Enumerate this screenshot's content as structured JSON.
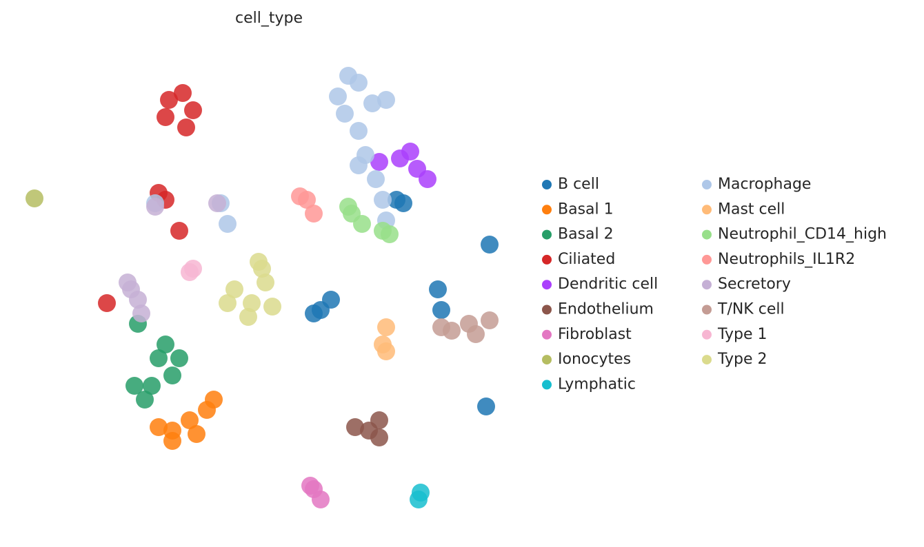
{
  "chart_data": {
    "type": "scatter",
    "title": "cell_type",
    "xlim": [
      0,
      700
    ],
    "ylim": [
      0,
      680
    ],
    "series": [
      {
        "name": "B cell",
        "color": "#1f77b4",
        "x": [
          425,
          440,
          415,
          545,
          535,
          670,
          595,
          600,
          665
        ],
        "y": [
          295,
          310,
          290,
          450,
          455,
          390,
          325,
          295,
          155
        ]
      },
      {
        "name": "Basal 1",
        "color": "#ff7f0e",
        "x": [
          210,
          235,
          260,
          270,
          210,
          190,
          245
        ],
        "y": [
          120,
          135,
          150,
          165,
          105,
          125,
          115
        ]
      },
      {
        "name": "Basal 2",
        "color": "#279e68",
        "x": [
          190,
          210,
          180,
          155,
          170,
          220,
          200,
          160
        ],
        "y": [
          225,
          200,
          185,
          185,
          165,
          225,
          245,
          275
        ]
      },
      {
        "name": "Ciliated",
        "color": "#d62728",
        "x": [
          205,
          225,
          240,
          200,
          230,
          190,
          200,
          220,
          115
        ],
        "y": [
          600,
          610,
          585,
          575,
          560,
          465,
          455,
          410,
          305
        ]
      },
      {
        "name": "Dendritic cell",
        "color": "#aa40fc",
        "x": [
          555,
          565,
          540,
          580,
          510
        ],
        "y": [
          525,
          500,
          515,
          485,
          510
        ]
      },
      {
        "name": "Endothelium",
        "color": "#8c564b",
        "x": [
          475,
          495,
          510,
          510
        ],
        "y": [
          125,
          120,
          135,
          110
        ]
      },
      {
        "name": "Fibroblast",
        "color": "#e377c2",
        "x": [
          415,
          425,
          410
        ],
        "y": [
          35,
          20,
          40
        ]
      },
      {
        "name": "Ionocytes",
        "color": "#b5bd61",
        "x": [
          10
        ],
        "y": [
          457
        ]
      },
      {
        "name": "Lymphatic",
        "color": "#17becf",
        "x": [
          570,
          567
        ],
        "y": [
          30,
          20
        ]
      },
      {
        "name": "Macrophage",
        "color": "#aec7e8",
        "x": [
          450,
          480,
          460,
          500,
          480,
          490,
          505,
          515,
          465,
          520,
          520,
          480,
          185,
          280,
          290
        ],
        "y": [
          605,
          625,
          580,
          595,
          555,
          520,
          485,
          455,
          635,
          600,
          425,
          505,
          450,
          450,
          420
        ]
      },
      {
        "name": "Mast cell",
        "color": "#ffbb78",
        "x": [
          515,
          520,
          520
        ],
        "y": [
          245,
          235,
          270
        ]
      },
      {
        "name": "Neutrophil_CD14_high",
        "color": "#98df8a",
        "x": [
          470,
          485,
          465,
          515,
          525
        ],
        "y": [
          435,
          420,
          445,
          410,
          405
        ]
      },
      {
        "name": "Neutrophils_IL1R2",
        "color": "#ff9896",
        "x": [
          405,
          415,
          395
        ],
        "y": [
          455,
          435,
          460
        ]
      },
      {
        "name": "Secretory",
        "color": "#c5b0d5",
        "x": [
          150,
          160,
          165,
          145,
          185,
          275
        ],
        "y": [
          325,
          310,
          290,
          335,
          445,
          450
        ]
      },
      {
        "name": "T/NK cell",
        "color": "#c49c94",
        "x": [
          615,
          640,
          670,
          650,
          600
        ],
        "y": [
          265,
          275,
          280,
          260,
          270
        ]
      },
      {
        "name": "Type 1",
        "color": "#f7b6d2",
        "x": [
          240,
          235
        ],
        "y": [
          355,
          350
        ]
      },
      {
        "name": "Type 2",
        "color": "#dbdb8d",
        "x": [
          300,
          325,
          345,
          340,
          320,
          355,
          290,
          335
        ],
        "y": [
          325,
          305,
          335,
          355,
          285,
          300,
          305,
          365
        ]
      }
    ]
  }
}
